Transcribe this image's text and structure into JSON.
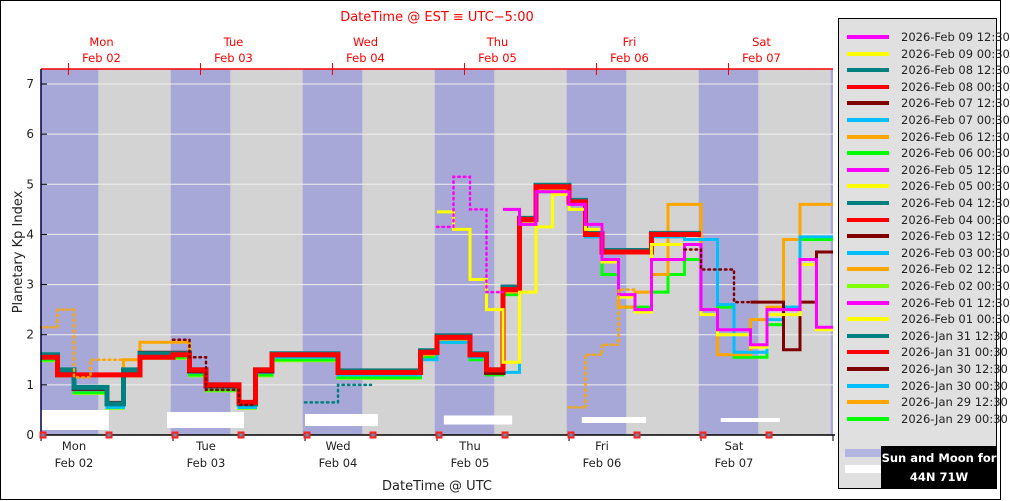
{
  "chart_data": {
    "type": "line",
    "step": true,
    "title_top_axis": "DateTime @ EST ≡ UTC−5:00",
    "xlabel": "DateTime @ UTC",
    "ylabel": "Planetary Kp Index",
    "ylim": [
      0,
      7.3
    ],
    "yticks": [
      "0",
      "1",
      "2",
      "3",
      "4",
      "5",
      "6",
      "7"
    ],
    "x_start_utc": "Feb 02 00:00",
    "x_end_utc": "Feb 08 00:00",
    "bin_hours": 3,
    "grid": true,
    "legend_position": "right",
    "top_axis_labels": [
      {
        "day": "Mon",
        "date": "Feb 02"
      },
      {
        "day": "Tue",
        "date": "Feb 03"
      },
      {
        "day": "Wed",
        "date": "Feb 04"
      },
      {
        "day": "Thu",
        "date": "Feb 05"
      },
      {
        "day": "Fri",
        "date": "Feb 06"
      },
      {
        "day": "Sat",
        "date": "Feb 07"
      }
    ],
    "bottom_axis_labels": [
      {
        "day": "Mon",
        "date": "Feb 02"
      },
      {
        "day": "Tue",
        "date": "Feb 03"
      },
      {
        "day": "Wed",
        "date": "Feb 04"
      },
      {
        "day": "Thu",
        "date": "Feb 05"
      },
      {
        "day": "Fri",
        "date": "Feb 06"
      },
      {
        "day": "Sat",
        "date": "Feb 07"
      }
    ],
    "night_utc": [
      [
        "Feb 01 23:35",
        "Feb 02 10:25"
      ],
      [
        "Feb 02 23:35",
        "Feb 03 10:25"
      ],
      [
        "Feb 03 23:35",
        "Feb 04 10:25"
      ],
      [
        "Feb 04 23:35",
        "Feb 05 10:25"
      ],
      [
        "Feb 05 23:35",
        "Feb 06 10:25"
      ],
      [
        "Feb 06 23:35",
        "Feb 07 10:25"
      ],
      [
        "Feb 07 23:35",
        "Feb 08 10:25"
      ]
    ],
    "moon_up_utc": [
      [
        "Feb 02 00:00",
        "Feb 02 12:20"
      ],
      [
        "Feb 02 22:55",
        "Feb 03 12:55"
      ],
      [
        "Feb 04 00:00",
        "Feb 04 13:15"
      ],
      [
        "Feb 05 01:15",
        "Feb 05 13:40"
      ],
      [
        "Feb 06 02:20",
        "Feb 06 14:00"
      ],
      [
        "Feb 07 03:35",
        "Feb 07 14:20"
      ]
    ],
    "series": [
      {
        "name": "2026-Feb 02 00:30",
        "color": "#7fff00",
        "style": "solid",
        "start": 0,
        "values": [
          1.48,
          1.18,
          0.83,
          0.83,
          0.53,
          1.18,
          1.53,
          1.53,
          1.53,
          1.18,
          0.88,
          0.88,
          0.53,
          1.18,
          1.48,
          1.48,
          1.48,
          1.48,
          1.13,
          1.13,
          1.13,
          1.13,
          1.13,
          1.53
        ]
      },
      {
        "name": "2026-Feb 06 00:30",
        "color": "#00ff00",
        "style": "solid",
        "start": 0,
        "values": [
          1.5,
          1.2,
          0.85,
          0.85,
          0.55,
          1.2,
          1.55,
          1.55,
          1.55,
          1.2,
          0.9,
          0.9,
          0.55,
          1.2,
          1.5,
          1.5,
          1.5,
          1.5,
          1.15,
          1.15,
          1.15,
          1.15,
          1.15,
          1.55,
          1.85,
          1.85,
          1.5,
          1.2,
          2.8,
          4.2,
          4.85,
          4.85,
          4.6,
          4.0,
          3.2,
          2.55,
          2.55,
          2.85,
          3.2,
          3.5,
          3.9,
          2.55,
          1.55,
          1.55,
          2.2,
          2.55,
          3.9,
          3.9
        ]
      },
      {
        "name": "2026-Feb 06 12:30",
        "color": "#ffa500",
        "style": "solid",
        "start": 0,
        "values": [
          1.55,
          1.25,
          0.9,
          0.9,
          0.6,
          1.5,
          1.85,
          1.85,
          1.85,
          1.25,
          0.95,
          0.95,
          0.6,
          1.25,
          1.55,
          1.55,
          1.55,
          1.55,
          1.2,
          1.2,
          1.2,
          1.2,
          1.2,
          1.6,
          1.9,
          1.9,
          1.55,
          1.25,
          2.85,
          4.25,
          4.9,
          4.9,
          4.6,
          4.0,
          3.5,
          2.55,
          2.85,
          3.2,
          4.6,
          4.6,
          2.5,
          1.6,
          1.6,
          2.3,
          2.55,
          3.9,
          4.6,
          4.6
        ]
      },
      {
        "name": "2026-Feb 07 00:30",
        "color": "#00bfff",
        "style": "solid",
        "start": 0,
        "values": [
          1.55,
          1.25,
          0.9,
          0.9,
          0.55,
          1.25,
          1.6,
          1.6,
          1.6,
          1.25,
          0.95,
          0.95,
          0.55,
          1.25,
          1.55,
          1.55,
          1.55,
          1.55,
          1.2,
          1.2,
          1.2,
          1.2,
          1.2,
          1.5,
          1.85,
          1.85,
          1.55,
          1.25,
          1.25,
          4.2,
          4.85,
          4.85,
          4.6,
          3.95,
          3.65,
          3.65,
          3.65,
          3.95,
          3.95,
          3.9,
          3.9,
          2.6,
          1.65,
          1.65,
          2.3,
          2.55,
          3.95,
          3.95
        ]
      },
      {
        "name": "2026-Jan 30 12:30",
        "color": "#800000",
        "style": "solid",
        "start": 0,
        "values": [
          1.58,
          1.28,
          0.93,
          0.93,
          0.63,
          1.28,
          1.63,
          1.63,
          1.63,
          1.28,
          0.98,
          0.98,
          0.63,
          1.28,
          1.6,
          1.6,
          1.6,
          1.6,
          1.25,
          1.25,
          1.25,
          1.25,
          1.25,
          1.65,
          1.95,
          1.95,
          1.6,
          1.25,
          2.95,
          4.3,
          4.95,
          4.95,
          4.65,
          4.0,
          3.65,
          3.65,
          3.65,
          4.0,
          4.0,
          4.0
        ]
      },
      {
        "name": "2026-Feb 07 12:30",
        "color": "#800000",
        "style": "solid",
        "start": 43,
        "values": [
          2.65,
          2.65,
          1.7,
          2.65,
          3.65
        ]
      },
      {
        "name": "2026-Feb 08 12:30",
        "color": "#008080",
        "style": "solid",
        "start": 0,
        "values": [
          1.6,
          1.3,
          0.95,
          0.95,
          0.62,
          1.3,
          1.62,
          1.62,
          1.62,
          1.3,
          1.0,
          1.0,
          0.62,
          1.3,
          1.62,
          1.62,
          1.62,
          1.62,
          1.28,
          1.28,
          1.28,
          1.28,
          1.28,
          1.68,
          1.98,
          1.98,
          1.62,
          1.3,
          2.95,
          4.32,
          4.98,
          4.98,
          4.68,
          4.02,
          3.68,
          3.68,
          3.68,
          4.02,
          4.02,
          4.02
        ]
      },
      {
        "name": "2026-Feb 08 00:30",
        "color": "#ff0000",
        "style": "solid",
        "start": 0,
        "values": [
          1.55,
          1.2,
          1.2,
          1.2,
          1.2,
          1.2,
          1.55,
          1.55,
          1.6,
          1.3,
          1.0,
          1.0,
          0.65,
          1.3,
          1.6,
          1.6,
          1.6,
          1.6,
          1.25,
          1.25,
          1.25,
          1.25,
          1.25,
          1.65,
          1.95,
          1.95,
          1.6,
          1.3,
          2.9,
          4.3,
          4.95,
          4.95,
          4.65,
          4.0,
          3.65,
          3.65,
          3.65,
          4.0,
          4.0,
          4.0
        ]
      },
      {
        "name": "2026-Feb 09 00:30",
        "color": "#ffff00",
        "style": "solid",
        "start": 24,
        "values": [
          4.45,
          4.1,
          3.1,
          2.5,
          1.45,
          2.85,
          4.15,
          4.8,
          4.5,
          4.1,
          3.45,
          2.75,
          2.45,
          3.8,
          3.8,
          3.8,
          2.4,
          2.0,
          2.0,
          1.75,
          2.4,
          2.4,
          3.4,
          2.1
        ]
      },
      {
        "name": "2026-Feb 09 12:30",
        "color": "#ff00ff",
        "style": "solid",
        "start": 28,
        "values": [
          4.5,
          4.2,
          4.85,
          4.85,
          4.6,
          4.2,
          3.5,
          2.8,
          2.5,
          3.5,
          3.5,
          3.8,
          2.5,
          2.1,
          2.1,
          1.8,
          2.5,
          2.5,
          3.5,
          2.15
        ]
      },
      {
        "color": "#ffa500",
        "style": "dotted",
        "start": 0,
        "values": [
          2.15,
          2.5,
          1.15,
          1.5,
          1.5
        ]
      },
      {
        "color": "#800000",
        "style": "dotted",
        "start": 8,
        "values": [
          1.9,
          1.55,
          0.9,
          0.9,
          0.6
        ]
      },
      {
        "color": "#008080",
        "style": "dotted",
        "start": 16,
        "values": [
          0.65,
          0.65,
          1.0,
          1.0
        ]
      },
      {
        "color": "#ff00ff",
        "style": "dotted",
        "start": 24,
        "values": [
          4.15,
          5.15,
          4.5,
          2.85
        ]
      },
      {
        "color": "#ffa500",
        "style": "dotted",
        "start": 32,
        "values": [
          0.55,
          1.6,
          1.8,
          2.9
        ]
      },
      {
        "color": "#800000",
        "style": "dotted",
        "start": 39,
        "values": [
          3.7,
          3.3,
          3.3,
          2.65
        ]
      }
    ]
  },
  "legend": [
    {
      "label": "2026-Feb 09 12:30",
      "color": "#ff00ff"
    },
    {
      "label": "2026-Feb 09 00:30",
      "color": "#ffff00"
    },
    {
      "label": "2026-Feb 08 12:30",
      "color": "#008080"
    },
    {
      "label": "2026-Feb 08 00:30",
      "color": "#ff0000"
    },
    {
      "label": "2026-Feb 07 12:30",
      "color": "#800000"
    },
    {
      "label": "2026-Feb 07 00:30",
      "color": "#00bfff"
    },
    {
      "label": "2026-Feb 06 12:30",
      "color": "#ffa500"
    },
    {
      "label": "2026-Feb 06 00:30",
      "color": "#00ff00"
    },
    {
      "label": "2026-Feb 05 12:30",
      "color": "#ff00ff"
    },
    {
      "label": "2026-Feb 05 00:30",
      "color": "#ffff00"
    },
    {
      "label": "2026-Feb 04 12:30",
      "color": "#008080"
    },
    {
      "label": "2026-Feb 04 00:30",
      "color": "#ff0000"
    },
    {
      "label": "2026-Feb 03 12:30",
      "color": "#800000"
    },
    {
      "label": "2026-Feb 03 00:30",
      "color": "#00bfff"
    },
    {
      "label": "2026-Feb 02 12:30",
      "color": "#ffa500"
    },
    {
      "label": "2026-Feb 02 00:30",
      "color": "#7fff00"
    },
    {
      "label": "2026-Feb 01 12:30",
      "color": "#ff00ff"
    },
    {
      "label": "2026-Feb 01 00:30",
      "color": "#ffff00"
    },
    {
      "label": "2026-Jan 31 12:30",
      "color": "#008080"
    },
    {
      "label": "2026-Jan 31 00:30",
      "color": "#ff0000"
    },
    {
      "label": "2026-Jan 30 12:30",
      "color": "#800000"
    },
    {
      "label": "2026-Jan 30 00:30",
      "color": "#00bfff"
    },
    {
      "label": "2026-Jan 29 12:30",
      "color": "#ffa500"
    },
    {
      "label": "2026-Jan 29 00:30",
      "color": "#00ff00"
    }
  ],
  "sun_moon_box": {
    "line1": "Sun and Moon for",
    "line2": "44N 71W"
  },
  "colors": {
    "night": "#a8a8d8",
    "day": "#d3d3d3",
    "moon": "#ffffff",
    "top_axis": "#ff0000"
  }
}
